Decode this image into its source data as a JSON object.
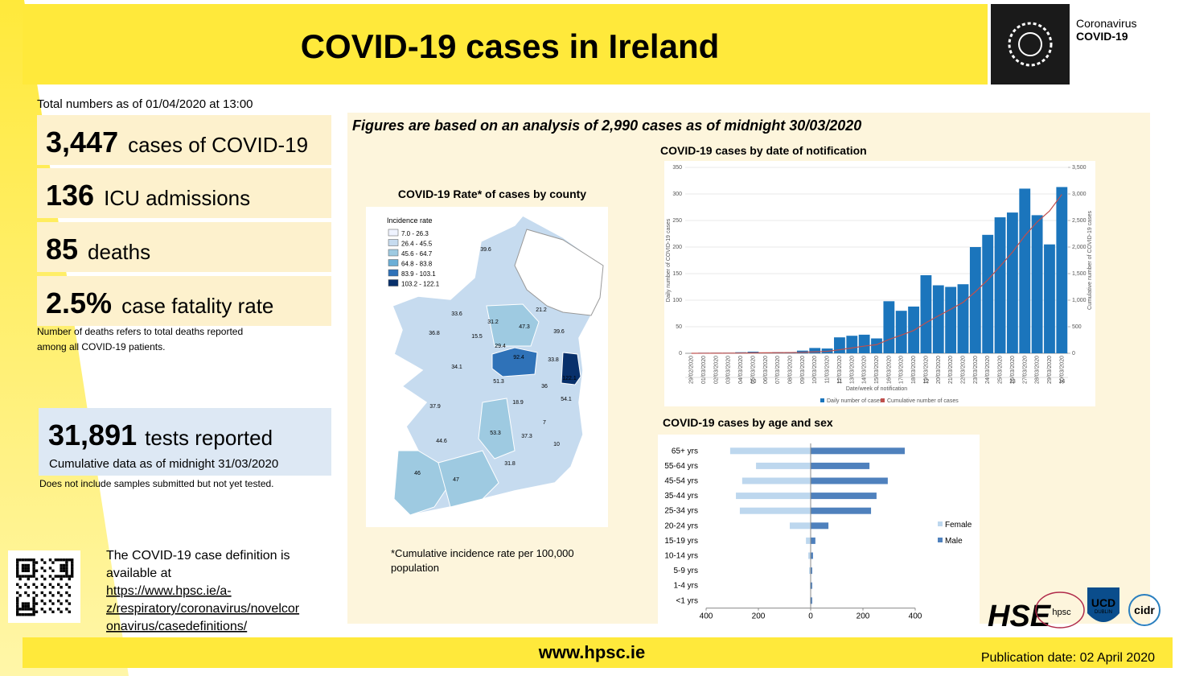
{
  "header": {
    "title": "COVID-19 cases in Ireland",
    "logo_line1": "Coronavirus",
    "logo_line2": "COVID-19"
  },
  "stats": {
    "as_of": "Total numbers  as of 01/04/2020 at 13:00",
    "items": [
      {
        "value": "3,447",
        "label": "cases of COVID-19"
      },
      {
        "value": "136",
        "label": "ICU admissions"
      },
      {
        "value": "85",
        "label": "deaths"
      },
      {
        "value": "2.5%",
        "label": "case fatality rate"
      }
    ],
    "note": [
      "Number  of deaths refers to total deaths reported",
      "among all COVID-19 patients."
    ],
    "tests": {
      "value": "31,891",
      "label": "tests reported",
      "sub": "Cumulative data as of midnight 31/03/2020",
      "note": "Does not include samples submitted but not yet tested."
    }
  },
  "definition": {
    "text": [
      "The COVID-19 case definition is",
      "available at"
    ],
    "link": [
      "https://www.hpsc.ie/a-",
      "z/respiratory/coronavirus/novelcor",
      "onavirus/casedefinitions/"
    ]
  },
  "panel_title": "Figures are based on an analysis of 2,990 cases as of midnight 30/03/2020",
  "map": {
    "title": "COVID-19 Rate* of cases by county",
    "legend_title": "Incidence rate",
    "legend": [
      "7.0 - 26.3",
      "26.4 - 45.5",
      "45.6 - 64.7",
      "64.8 - 83.8",
      "83.9 - 103.1",
      "103.2 - 122.1"
    ],
    "colors": [
      "#eff3ff",
      "#c6dbef",
      "#9ecae1",
      "#6baed6",
      "#2f72b8",
      "#08306b"
    ],
    "county_values": [
      39.6,
      21.2,
      33.6,
      31.2,
      47.3,
      39.6,
      36.8,
      15.5,
      29.4,
      92.4,
      33.8,
      122.1,
      34.1,
      51.3,
      36.0,
      54.1,
      18.9,
      37.9,
      7.0,
      53.3,
      37.3,
      10.0,
      44.6,
      31.8,
      46.0,
      47.0
    ],
    "footnote": [
      "*Cumulative incidence rate per 100,000",
      "population"
    ]
  },
  "chart_data": [
    {
      "type": "bar",
      "title": "COVID-19 cases by date of notification",
      "x_label": "Date/week of notification",
      "y_label": "Daily number of COVID-19 cases",
      "y2_label": "Cumulative number of COVID-19 cases",
      "categories": [
        "29/02/2020",
        "01/03/2020",
        "02/03/2020",
        "03/03/2020",
        "04/03/2020",
        "05/03/2020",
        "06/03/2020",
        "07/03/2020",
        "08/03/2020",
        "09/03/2020",
        "10/03/2020",
        "11/03/2020",
        "12/03/2020",
        "13/03/2020",
        "14/03/2020",
        "15/03/2020",
        "16/03/2020",
        "17/03/2020",
        "18/03/2020",
        "19/03/2020",
        "20/03/2020",
        "21/03/2020",
        "22/03/2020",
        "23/03/2020",
        "24/03/2020",
        "25/03/2020",
        "26/03/2020",
        "27/03/2020",
        "28/03/2020",
        "29/03/2020",
        "30/03/2020"
      ],
      "weeks": [
        "10",
        "11",
        "12",
        "13",
        "14"
      ],
      "series": [
        {
          "name": "Daily number of cases",
          "color": "#1b75bc",
          "values": [
            0,
            1,
            1,
            1,
            2,
            3,
            1,
            2,
            2,
            5,
            10,
            9,
            30,
            33,
            35,
            28,
            98,
            80,
            88,
            147,
            128,
            125,
            130,
            200,
            223,
            256,
            265,
            310,
            260,
            205,
            313
          ]
        },
        {
          "name": "Cumulative number of cases",
          "color": "#c0504d",
          "type": "line",
          "axis": "y2",
          "values": [
            0,
            1,
            2,
            3,
            5,
            8,
            9,
            11,
            13,
            18,
            28,
            37,
            67,
            100,
            135,
            163,
            261,
            341,
            429,
            576,
            704,
            829,
            959,
            1159,
            1382,
            1638,
            1903,
            2213,
            2473,
            2678,
            2991
          ]
        }
      ],
      "ylim": [
        0,
        350
      ],
      "yticks": [
        0,
        50,
        100,
        150,
        200,
        250,
        300,
        350
      ],
      "y2lim": [
        0,
        3500
      ],
      "y2ticks": [
        0,
        500,
        {
          "value": 1000,
          "label": "1,000"
        },
        {
          "value": 1500,
          "label": "1,500"
        },
        {
          "value": 2000,
          "label": "2,000"
        },
        {
          "value": 2500,
          "label": "2,500"
        },
        {
          "value": 3000,
          "label": "3,000"
        },
        {
          "value": 3500,
          "label": "3,500"
        }
      ],
      "grid": true
    },
    {
      "type": "hbar",
      "title": "COVID-19 cases by age and sex",
      "categories": [
        "65+ yrs",
        "55-64 yrs",
        "45-54 yrs",
        "35-44 yrs",
        "25-34 yrs",
        "20-24 yrs",
        "15-19 yrs",
        "10-14 yrs",
        "5-9 yrs",
        "1-4 yrs",
        "<1 yrs"
      ],
      "series": [
        {
          "name": "Female",
          "color": "#bdd7ee",
          "values": [
            -308,
            -209,
            -262,
            -286,
            -271,
            -80,
            -18,
            -9,
            -6,
            -3,
            -3
          ]
        },
        {
          "name": "Male",
          "color": "#4f81bd",
          "values": [
            360,
            225,
            295,
            252,
            231,
            68,
            18,
            9,
            6,
            6,
            6
          ]
        }
      ],
      "xlim": [
        -400,
        400
      ],
      "xticks": [
        {
          "value": -400,
          "label": "400"
        },
        {
          "value": -200,
          "label": "200"
        },
        0,
        200,
        400
      ]
    }
  ],
  "footer": {
    "url": "www.hpsc.ie",
    "publication": "Publication date: 02 April 2020"
  },
  "logos": [
    "HSE",
    "hpsc",
    "UCD",
    "DUBLIN",
    "cidr"
  ]
}
